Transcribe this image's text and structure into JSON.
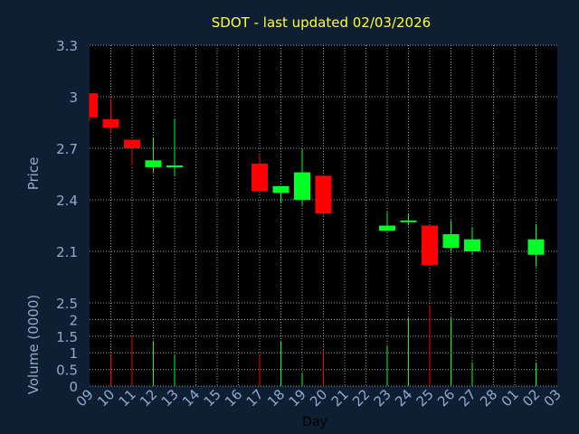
{
  "title": "SDOT - last updated 02/03/2026",
  "colors": {
    "background": "#0f1f33",
    "plot_bg": "#000000",
    "axis_text": "#8faacc",
    "title": "#ffff33",
    "grid": "#9a9a9a",
    "up": "#00ff26",
    "down": "#ff0000",
    "xlabel": "#000000"
  },
  "chart_data": [
    {
      "type": "candlestick",
      "ylabel": "Price",
      "ylim": [
        1.8,
        3.3
      ],
      "yticks": [
        "3.3",
        "3",
        "2.7",
        "2.4",
        "2.1"
      ],
      "ytick_values": [
        3.3,
        3.0,
        2.7,
        2.4,
        2.1
      ],
      "grid": true,
      "series": [
        {
          "day": "09",
          "open": 2.88,
          "high": 3.02,
          "low": 2.86,
          "close": 3.02,
          "dir": "down"
        },
        {
          "day": "10",
          "open": 2.87,
          "high": 2.99,
          "low": 2.79,
          "close": 2.82,
          "dir": "down"
        },
        {
          "day": "11",
          "open": 2.75,
          "high": 2.75,
          "low": 2.6,
          "close": 2.7,
          "dir": "down"
        },
        {
          "day": "12",
          "open": 2.59,
          "high": 2.76,
          "low": 2.56,
          "close": 2.63,
          "dir": "up"
        },
        {
          "day": "13",
          "open": 2.59,
          "high": 2.87,
          "low": 2.54,
          "close": 2.6,
          "dir": "up"
        },
        {
          "day": "17",
          "open": 2.61,
          "high": 2.66,
          "low": 2.45,
          "close": 2.45,
          "dir": "down"
        },
        {
          "day": "18",
          "open": 2.44,
          "high": 2.48,
          "low": 2.38,
          "close": 2.48,
          "dir": "up"
        },
        {
          "day": "19",
          "open": 2.4,
          "high": 2.7,
          "low": 2.37,
          "close": 2.56,
          "dir": "up"
        },
        {
          "day": "20",
          "open": 2.54,
          "high": 2.54,
          "low": 2.31,
          "close": 2.32,
          "dir": "down"
        },
        {
          "day": "23",
          "open": 2.22,
          "high": 2.33,
          "low": 2.22,
          "close": 2.25,
          "dir": "up"
        },
        {
          "day": "24",
          "open": 2.27,
          "high": 2.32,
          "low": 2.25,
          "close": 2.28,
          "dir": "up"
        },
        {
          "day": "25",
          "open": 2.25,
          "high": 2.25,
          "low": 2.02,
          "close": 2.02,
          "dir": "down"
        },
        {
          "day": "26",
          "open": 2.12,
          "high": 2.28,
          "low": 2.09,
          "close": 2.2,
          "dir": "up"
        },
        {
          "day": "27",
          "open": 2.1,
          "high": 2.24,
          "low": 2.08,
          "close": 2.17,
          "dir": "up"
        },
        {
          "day": "02",
          "open": 2.08,
          "high": 2.26,
          "low": 2.01,
          "close": 2.17,
          "dir": "up"
        }
      ]
    },
    {
      "type": "bar",
      "xlabel": "Day",
      "ylabel": "Volume (0000)",
      "ylim": [
        0,
        2.5
      ],
      "yticks": [
        "2.5",
        "2",
        "1.5",
        "1",
        "0.5",
        "0"
      ],
      "ytick_values": [
        2.5,
        2.0,
        1.5,
        1.0,
        0.5,
        0.0
      ],
      "categories": [
        "09",
        "10",
        "11",
        "12",
        "13",
        "14",
        "15",
        "16",
        "17",
        "18",
        "19",
        "20",
        "21",
        "22",
        "23",
        "24",
        "25",
        "26",
        "27",
        "28",
        "01",
        "02",
        "03"
      ],
      "series": [
        {
          "day": "10",
          "value": 0.92,
          "dir": "down"
        },
        {
          "day": "11",
          "value": 1.5,
          "dir": "down"
        },
        {
          "day": "12",
          "value": 1.35,
          "dir": "up"
        },
        {
          "day": "13",
          "value": 0.92,
          "dir": "up"
        },
        {
          "day": "17",
          "value": 0.92,
          "dir": "down"
        },
        {
          "day": "18",
          "value": 1.35,
          "dir": "up"
        },
        {
          "day": "19",
          "value": 0.4,
          "dir": "up"
        },
        {
          "day": "20",
          "value": 1.08,
          "dir": "down"
        },
        {
          "day": "23",
          "value": 1.22,
          "dir": "up"
        },
        {
          "day": "24",
          "value": 2.05,
          "dir": "up"
        },
        {
          "day": "25",
          "value": 2.4,
          "dir": "down"
        },
        {
          "day": "26",
          "value": 2.05,
          "dir": "up"
        },
        {
          "day": "27",
          "value": 0.72,
          "dir": "up"
        },
        {
          "day": "02",
          "value": 0.68,
          "dir": "up"
        }
      ]
    }
  ]
}
